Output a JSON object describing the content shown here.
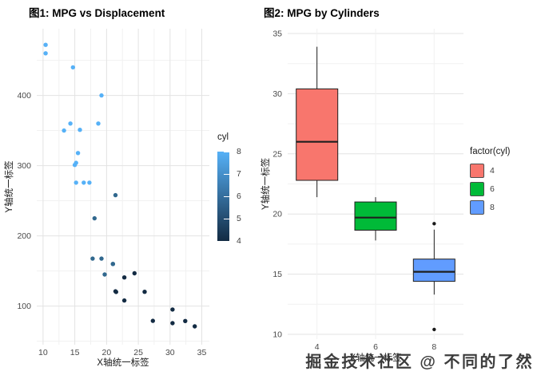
{
  "watermark": {
    "text": "掘金技术社区 @ 不同的了然"
  },
  "chart_data": [
    {
      "type": "scatter",
      "title": "图1: MPG vs Displacement",
      "xlabel": "X轴统一标签",
      "ylabel": "Y轴统一标签",
      "xlim": [
        9,
        36.2
      ],
      "ylim": [
        45,
        495
      ],
      "xticks": [
        10,
        15,
        20,
        25,
        30,
        35
      ],
      "yticks": [
        100,
        200,
        300,
        400
      ],
      "grid": true,
      "legend_position": "right",
      "point_colors": {
        "4": "#132B43",
        "6": "#31688E",
        "8": "#56B1F7"
      },
      "color_scale": {
        "title": "cyl",
        "min": 4,
        "max": 8,
        "low": "#132B43",
        "high": "#56B1F7",
        "ticks": [
          8,
          7,
          6,
          5,
          4
        ]
      },
      "points": [
        {
          "x": 21.0,
          "y": 160,
          "cyl": 6
        },
        {
          "x": 21.0,
          "y": 160,
          "cyl": 6
        },
        {
          "x": 22.8,
          "y": 108,
          "cyl": 4
        },
        {
          "x": 21.4,
          "y": 258,
          "cyl": 6
        },
        {
          "x": 18.7,
          "y": 360,
          "cyl": 8
        },
        {
          "x": 18.1,
          "y": 225,
          "cyl": 6
        },
        {
          "x": 14.3,
          "y": 360,
          "cyl": 8
        },
        {
          "x": 24.4,
          "y": 146.7,
          "cyl": 4
        },
        {
          "x": 22.8,
          "y": 140.8,
          "cyl": 4
        },
        {
          "x": 19.2,
          "y": 167.6,
          "cyl": 6
        },
        {
          "x": 17.8,
          "y": 167.6,
          "cyl": 6
        },
        {
          "x": 16.4,
          "y": 275.8,
          "cyl": 8
        },
        {
          "x": 17.3,
          "y": 275.8,
          "cyl": 8
        },
        {
          "x": 15.2,
          "y": 275.8,
          "cyl": 8
        },
        {
          "x": 10.4,
          "y": 472,
          "cyl": 8
        },
        {
          "x": 10.4,
          "y": 460,
          "cyl": 8
        },
        {
          "x": 14.7,
          "y": 440,
          "cyl": 8
        },
        {
          "x": 32.4,
          "y": 78.7,
          "cyl": 4
        },
        {
          "x": 30.4,
          "y": 75.7,
          "cyl": 4
        },
        {
          "x": 33.9,
          "y": 71.1,
          "cyl": 4
        },
        {
          "x": 21.5,
          "y": 120.1,
          "cyl": 4
        },
        {
          "x": 15.5,
          "y": 318,
          "cyl": 8
        },
        {
          "x": 15.2,
          "y": 304,
          "cyl": 8
        },
        {
          "x": 13.3,
          "y": 350,
          "cyl": 8
        },
        {
          "x": 19.2,
          "y": 400,
          "cyl": 8
        },
        {
          "x": 27.3,
          "y": 79,
          "cyl": 4
        },
        {
          "x": 26.0,
          "y": 120.3,
          "cyl": 4
        },
        {
          "x": 30.4,
          "y": 95.1,
          "cyl": 4
        },
        {
          "x": 15.8,
          "y": 351,
          "cyl": 8
        },
        {
          "x": 19.7,
          "y": 145,
          "cyl": 6
        },
        {
          "x": 15.0,
          "y": 301,
          "cyl": 8
        },
        {
          "x": 21.4,
          "y": 121,
          "cyl": 4
        }
      ]
    },
    {
      "type": "box",
      "title": "图2: MPG by Cylinders",
      "xlabel": "X轴统一标签",
      "ylabel": "Y轴统一标签",
      "ylim": [
        9.6,
        35.4
      ],
      "yticks": [
        10,
        15,
        20,
        25,
        30,
        35
      ],
      "categories": [
        "4",
        "6",
        "8"
      ],
      "grid": true,
      "legend_position": "right",
      "legend": {
        "title": "factor(cyl)",
        "entries": [
          {
            "label": "4",
            "color": "#F8766D"
          },
          {
            "label": "6",
            "color": "#00BA38"
          },
          {
            "label": "8",
            "color": "#619CFF"
          }
        ]
      },
      "boxes": [
        {
          "category": "4",
          "color": "#F8766D",
          "whisker_low": 21.4,
          "q1": 22.8,
          "median": 26.0,
          "q3": 30.4,
          "whisker_high": 33.9,
          "outliers": []
        },
        {
          "category": "6",
          "color": "#00BA38",
          "whisker_low": 17.8,
          "q1": 18.65,
          "median": 19.7,
          "q3": 21.0,
          "whisker_high": 21.4,
          "outliers": []
        },
        {
          "category": "8",
          "color": "#619CFF",
          "whisker_low": 13.3,
          "q1": 14.4,
          "median": 15.2,
          "q3": 16.25,
          "whisker_high": 18.7,
          "outliers": [
            19.2,
            10.4
          ]
        }
      ]
    }
  ]
}
